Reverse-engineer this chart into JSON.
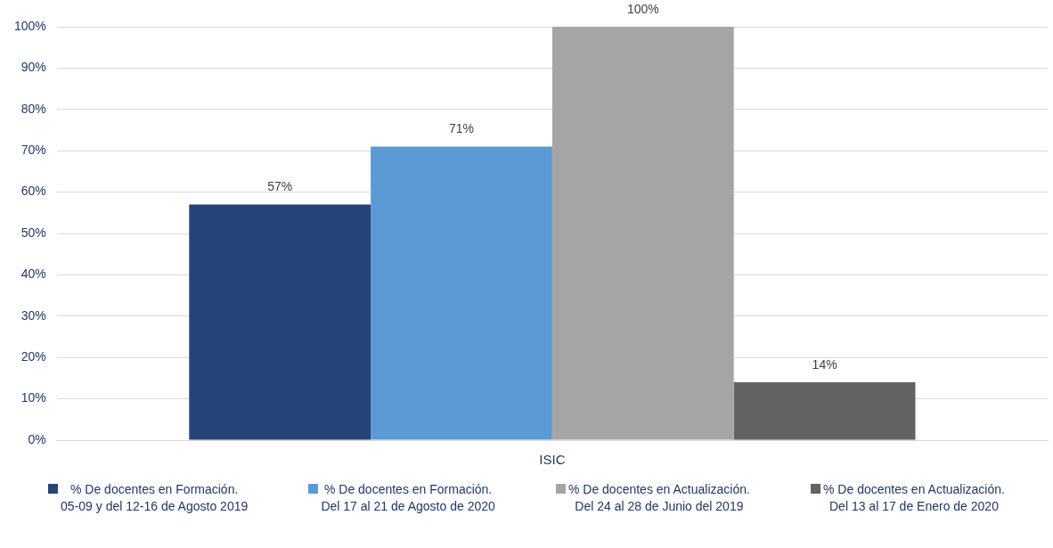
{
  "chart_data": {
    "type": "bar",
    "categories": [
      "ISIC"
    ],
    "series": [
      {
        "name": "% De docentes en Formación.\n05-09 y del 12-16 de Agosto 2019",
        "color": "#264478",
        "values": [
          57
        ],
        "value_labels": [
          "57%"
        ]
      },
      {
        "name": "% De docentes en Formación.\nDel 17 al 21 de Agosto de 2020",
        "color": "#5b9bd5",
        "values": [
          71
        ],
        "value_labels": [
          "71%"
        ]
      },
      {
        "name": "% De docentes en Actualización.\nDel 24 al 28 de Junio del 2019",
        "color": "#a5a5a5",
        "values": [
          100
        ],
        "value_labels": [
          "100%"
        ]
      },
      {
        "name": "% De docentes en Actualización.\nDel 13 al 17 de Enero de 2020",
        "color": "#636363",
        "values": [
          14
        ],
        "value_labels": [
          "14%"
        ]
      }
    ],
    "ylim": [
      0,
      100
    ],
    "yticks": [
      {
        "value": 0,
        "label": "0%"
      },
      {
        "value": 10,
        "label": "10%"
      },
      {
        "value": 20,
        "label": "20%"
      },
      {
        "value": 30,
        "label": "30%"
      },
      {
        "value": 40,
        "label": "40%"
      },
      {
        "value": 50,
        "label": "50%"
      },
      {
        "value": 60,
        "label": "60%"
      },
      {
        "value": 70,
        "label": "70%"
      },
      {
        "value": 80,
        "label": "80%"
      },
      {
        "value": 90,
        "label": "90%"
      },
      {
        "value": 100,
        "label": "100%"
      }
    ],
    "grid": "y",
    "legend": "bottom"
  }
}
